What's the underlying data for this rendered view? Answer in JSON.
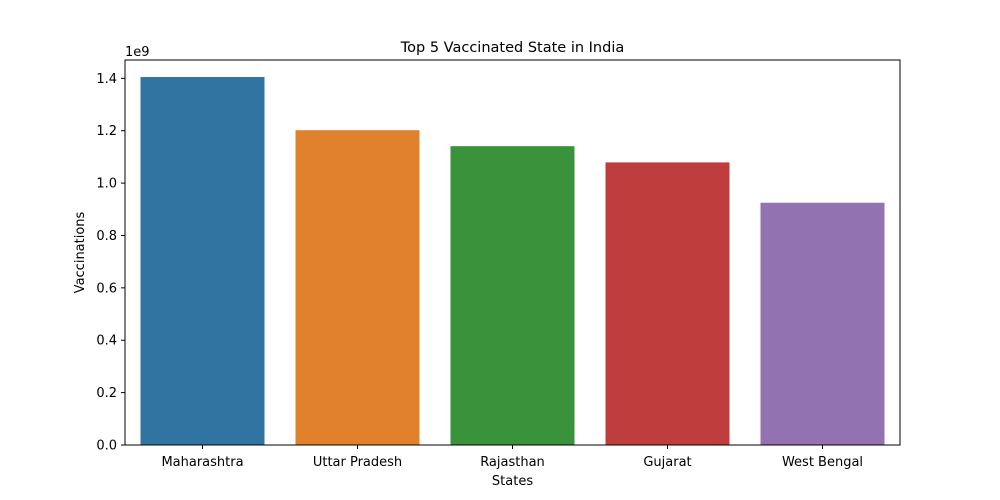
{
  "chart_data": {
    "type": "bar",
    "title": "Top 5 Vaccinated State in India",
    "xlabel": "States",
    "ylabel": "Vaccinations",
    "y_offset_label": "1e9",
    "y_scale": 1000000000,
    "categories": [
      "Maharashtra",
      "Uttar Pradesh",
      "Rajasthan",
      "Gujarat",
      "West Bengal"
    ],
    "values": [
      1405000000,
      1202000000,
      1141000000,
      1079000000,
      925000000
    ],
    "colors": [
      "#3274a1",
      "#e1812c",
      "#3a923a",
      "#c03d3e",
      "#9372b2"
    ],
    "ylim": [
      0,
      1470000000
    ],
    "yticks": [
      0,
      200000000,
      400000000,
      600000000,
      800000000,
      1000000000,
      1200000000,
      1400000000
    ],
    "ytick_labels": [
      "0.0",
      "0.2",
      "0.4",
      "0.6",
      "0.8",
      "1.0",
      "1.2",
      "1.4"
    ],
    "grid": false,
    "legend": "none"
  }
}
